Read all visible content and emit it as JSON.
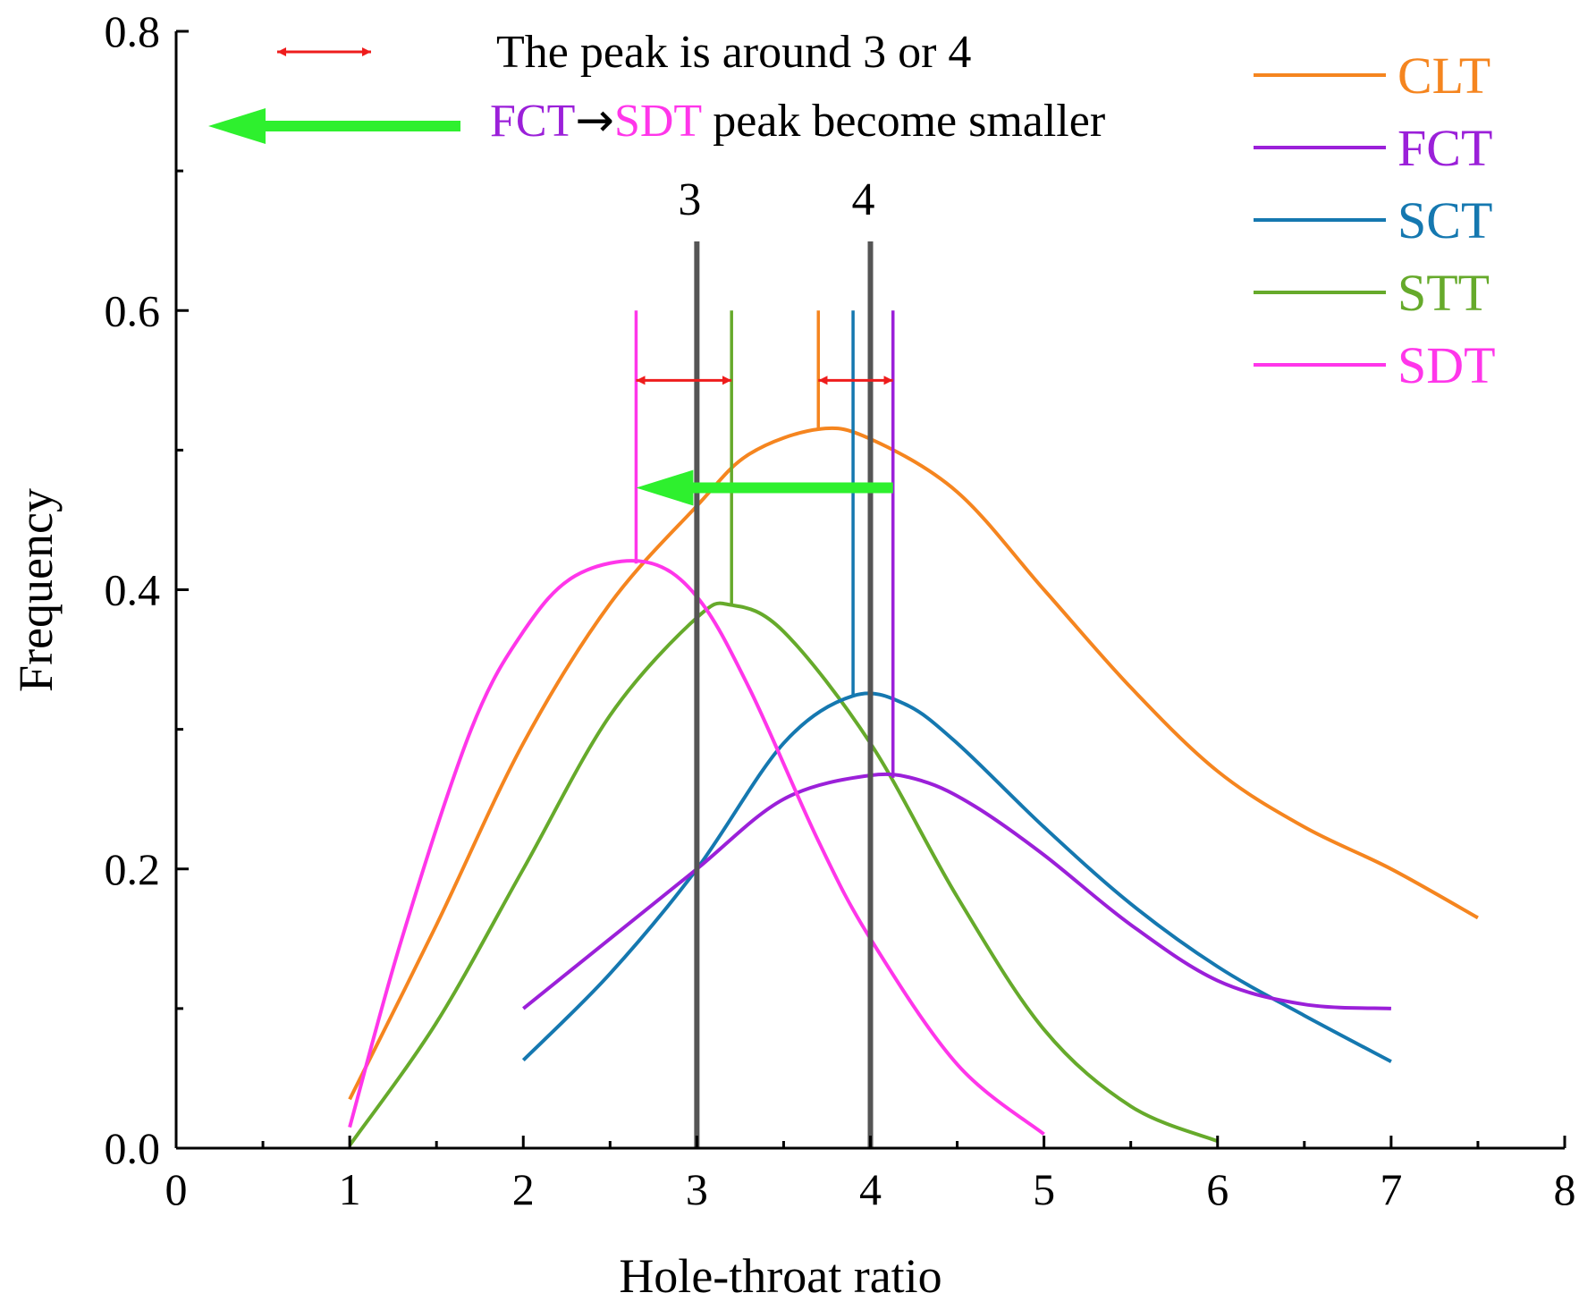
{
  "chart_data": {
    "type": "line",
    "xlabel": "Hole-throat ratio",
    "ylabel": "Frequency",
    "xlim": [
      0,
      8
    ],
    "ylim": [
      0,
      0.8
    ],
    "x_ticks": [
      "0",
      "1",
      "2",
      "3",
      "4",
      "5",
      "6",
      "7",
      "8"
    ],
    "y_ticks": [
      "0.0",
      "0.2",
      "0.4",
      "0.6",
      "0.8"
    ],
    "grid": false,
    "legend_position": "top-right",
    "series": [
      {
        "name": "CLT",
        "color": "#f5851f",
        "points": [
          [
            1.0,
            0.035
          ],
          [
            1.5,
            0.16
          ],
          [
            2.0,
            0.29
          ],
          [
            2.5,
            0.39
          ],
          [
            3.0,
            0.46
          ],
          [
            3.3,
            0.497
          ],
          [
            3.7,
            0.515
          ],
          [
            4.0,
            0.508
          ],
          [
            4.5,
            0.47
          ],
          [
            5.0,
            0.4
          ],
          [
            5.5,
            0.33
          ],
          [
            6.0,
            0.27
          ],
          [
            6.5,
            0.23
          ],
          [
            7.0,
            0.2
          ],
          [
            7.5,
            0.165
          ]
        ],
        "peak_x": 3.7
      },
      {
        "name": "FCT",
        "color": "#9b20d9",
        "points": [
          [
            2.0,
            0.1
          ],
          [
            2.5,
            0.15
          ],
          [
            3.0,
            0.2
          ],
          [
            3.5,
            0.25
          ],
          [
            4.0,
            0.267
          ],
          [
            4.3,
            0.263
          ],
          [
            4.6,
            0.245
          ],
          [
            5.0,
            0.21
          ],
          [
            5.5,
            0.16
          ],
          [
            6.0,
            0.12
          ],
          [
            6.5,
            0.103
          ],
          [
            7.0,
            0.1
          ]
        ],
        "peak_x": 4.13
      },
      {
        "name": "SCT",
        "color": "#1578b0",
        "points": [
          [
            2.0,
            0.063
          ],
          [
            2.5,
            0.125
          ],
          [
            3.0,
            0.2
          ],
          [
            3.5,
            0.29
          ],
          [
            3.9,
            0.324
          ],
          [
            4.2,
            0.318
          ],
          [
            4.5,
            0.29
          ],
          [
            5.0,
            0.23
          ],
          [
            5.5,
            0.175
          ],
          [
            6.0,
            0.13
          ],
          [
            6.5,
            0.095
          ],
          [
            7.0,
            0.062
          ]
        ],
        "peak_x": 3.9
      },
      {
        "name": "STT",
        "color": "#66aa2b",
        "points": [
          [
            1.0,
            0.002
          ],
          [
            1.5,
            0.09
          ],
          [
            2.0,
            0.2
          ],
          [
            2.5,
            0.31
          ],
          [
            3.0,
            0.38
          ],
          [
            3.2,
            0.389
          ],
          [
            3.5,
            0.37
          ],
          [
            4.0,
            0.29
          ],
          [
            4.5,
            0.18
          ],
          [
            5.0,
            0.085
          ],
          [
            5.5,
            0.03
          ],
          [
            6.0,
            0.005
          ]
        ],
        "peak_x": 3.2
      },
      {
        "name": "SDT",
        "color": "#ff36ea",
        "points": [
          [
            1.0,
            0.015
          ],
          [
            1.3,
            0.15
          ],
          [
            1.7,
            0.3
          ],
          [
            2.0,
            0.37
          ],
          [
            2.3,
            0.41
          ],
          [
            2.7,
            0.42
          ],
          [
            3.0,
            0.395
          ],
          [
            3.3,
            0.33
          ],
          [
            3.7,
            0.22
          ],
          [
            4.0,
            0.15
          ],
          [
            4.5,
            0.06
          ],
          [
            5.0,
            0.01
          ]
        ],
        "peak_x": 2.65
      }
    ],
    "reference_lines": [
      {
        "x": 3,
        "label": "3"
      },
      {
        "x": 4,
        "label": "4"
      }
    ],
    "annotations": {
      "line1_text": "The peak is around 3 or 4",
      "line2_part1": "FCT",
      "line2_arrow": "→",
      "line2_part2": "SDT",
      "line2_part3": " peak become smaller",
      "red_color": "#ee1c1c",
      "green_color": "#2ef02e"
    }
  }
}
